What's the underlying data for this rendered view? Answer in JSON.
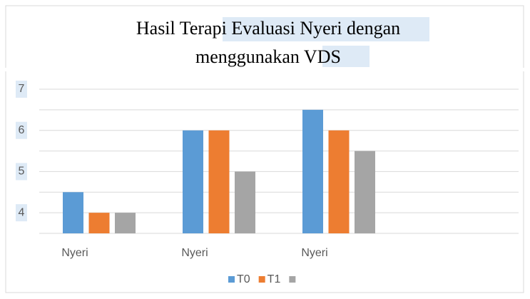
{
  "chart_data": {
    "type": "bar",
    "title_lines": [
      "Hasil Terapi Evaluasi Nyeri dengan",
      "menggunakan VDS"
    ],
    "categories": [
      "Nyeri",
      "Nyeri",
      "Nyeri",
      null
    ],
    "series": [
      {
        "name": "T0",
        "color": "#5b9bd5",
        "values": [
          4.5,
          6,
          6.5,
          null
        ]
      },
      {
        "name": "T1",
        "color": "#ed7d31",
        "values": [
          4,
          6,
          6,
          null
        ]
      },
      {
        "color": "#a5a5a5",
        "values": [
          4,
          5,
          5.5,
          null
        ]
      }
    ],
    "ylim": [
      3.5,
      7
    ],
    "yticks": [
      4,
      5,
      6,
      7
    ],
    "minor_yticks": [
      3.5,
      4.5,
      5.5,
      6.5
    ],
    "grid": true,
    "legend": "bottom"
  }
}
